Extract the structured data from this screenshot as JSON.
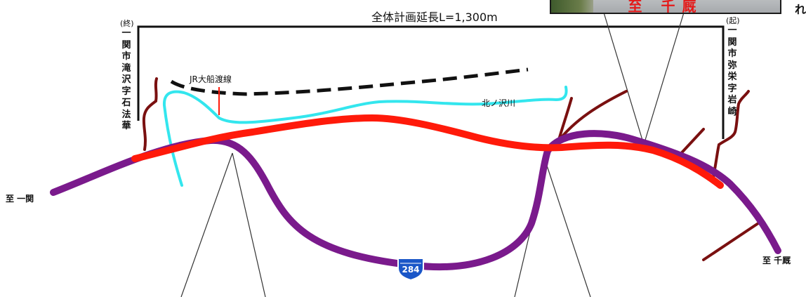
{
  "title": "全体計画延長L=1,300m",
  "end_label": {
    "paren": "(終)",
    "chars": [
      "一",
      "関",
      "市",
      "滝",
      "沢",
      "字",
      "石",
      "法",
      "華"
    ]
  },
  "start_label": {
    "paren": "(起)",
    "chars": [
      "一",
      "関",
      "市",
      "弥",
      "栄",
      "字",
      "岩",
      "崎"
    ]
  },
  "railway_label": "JR大船渡線",
  "river_label": "北ノ沢川",
  "to_ichinoseki": "至 一関",
  "to_senmaya": "至 千厩",
  "photo_caption": "至 千厩",
  "edge_char": "れ",
  "route_shield": "284",
  "colors": {
    "new_road": "#ff1a0a",
    "existing_route": "#7a1a8c",
    "river": "#33e6ee",
    "railway": "#111111",
    "side_roads": "#7a1010"
  }
}
